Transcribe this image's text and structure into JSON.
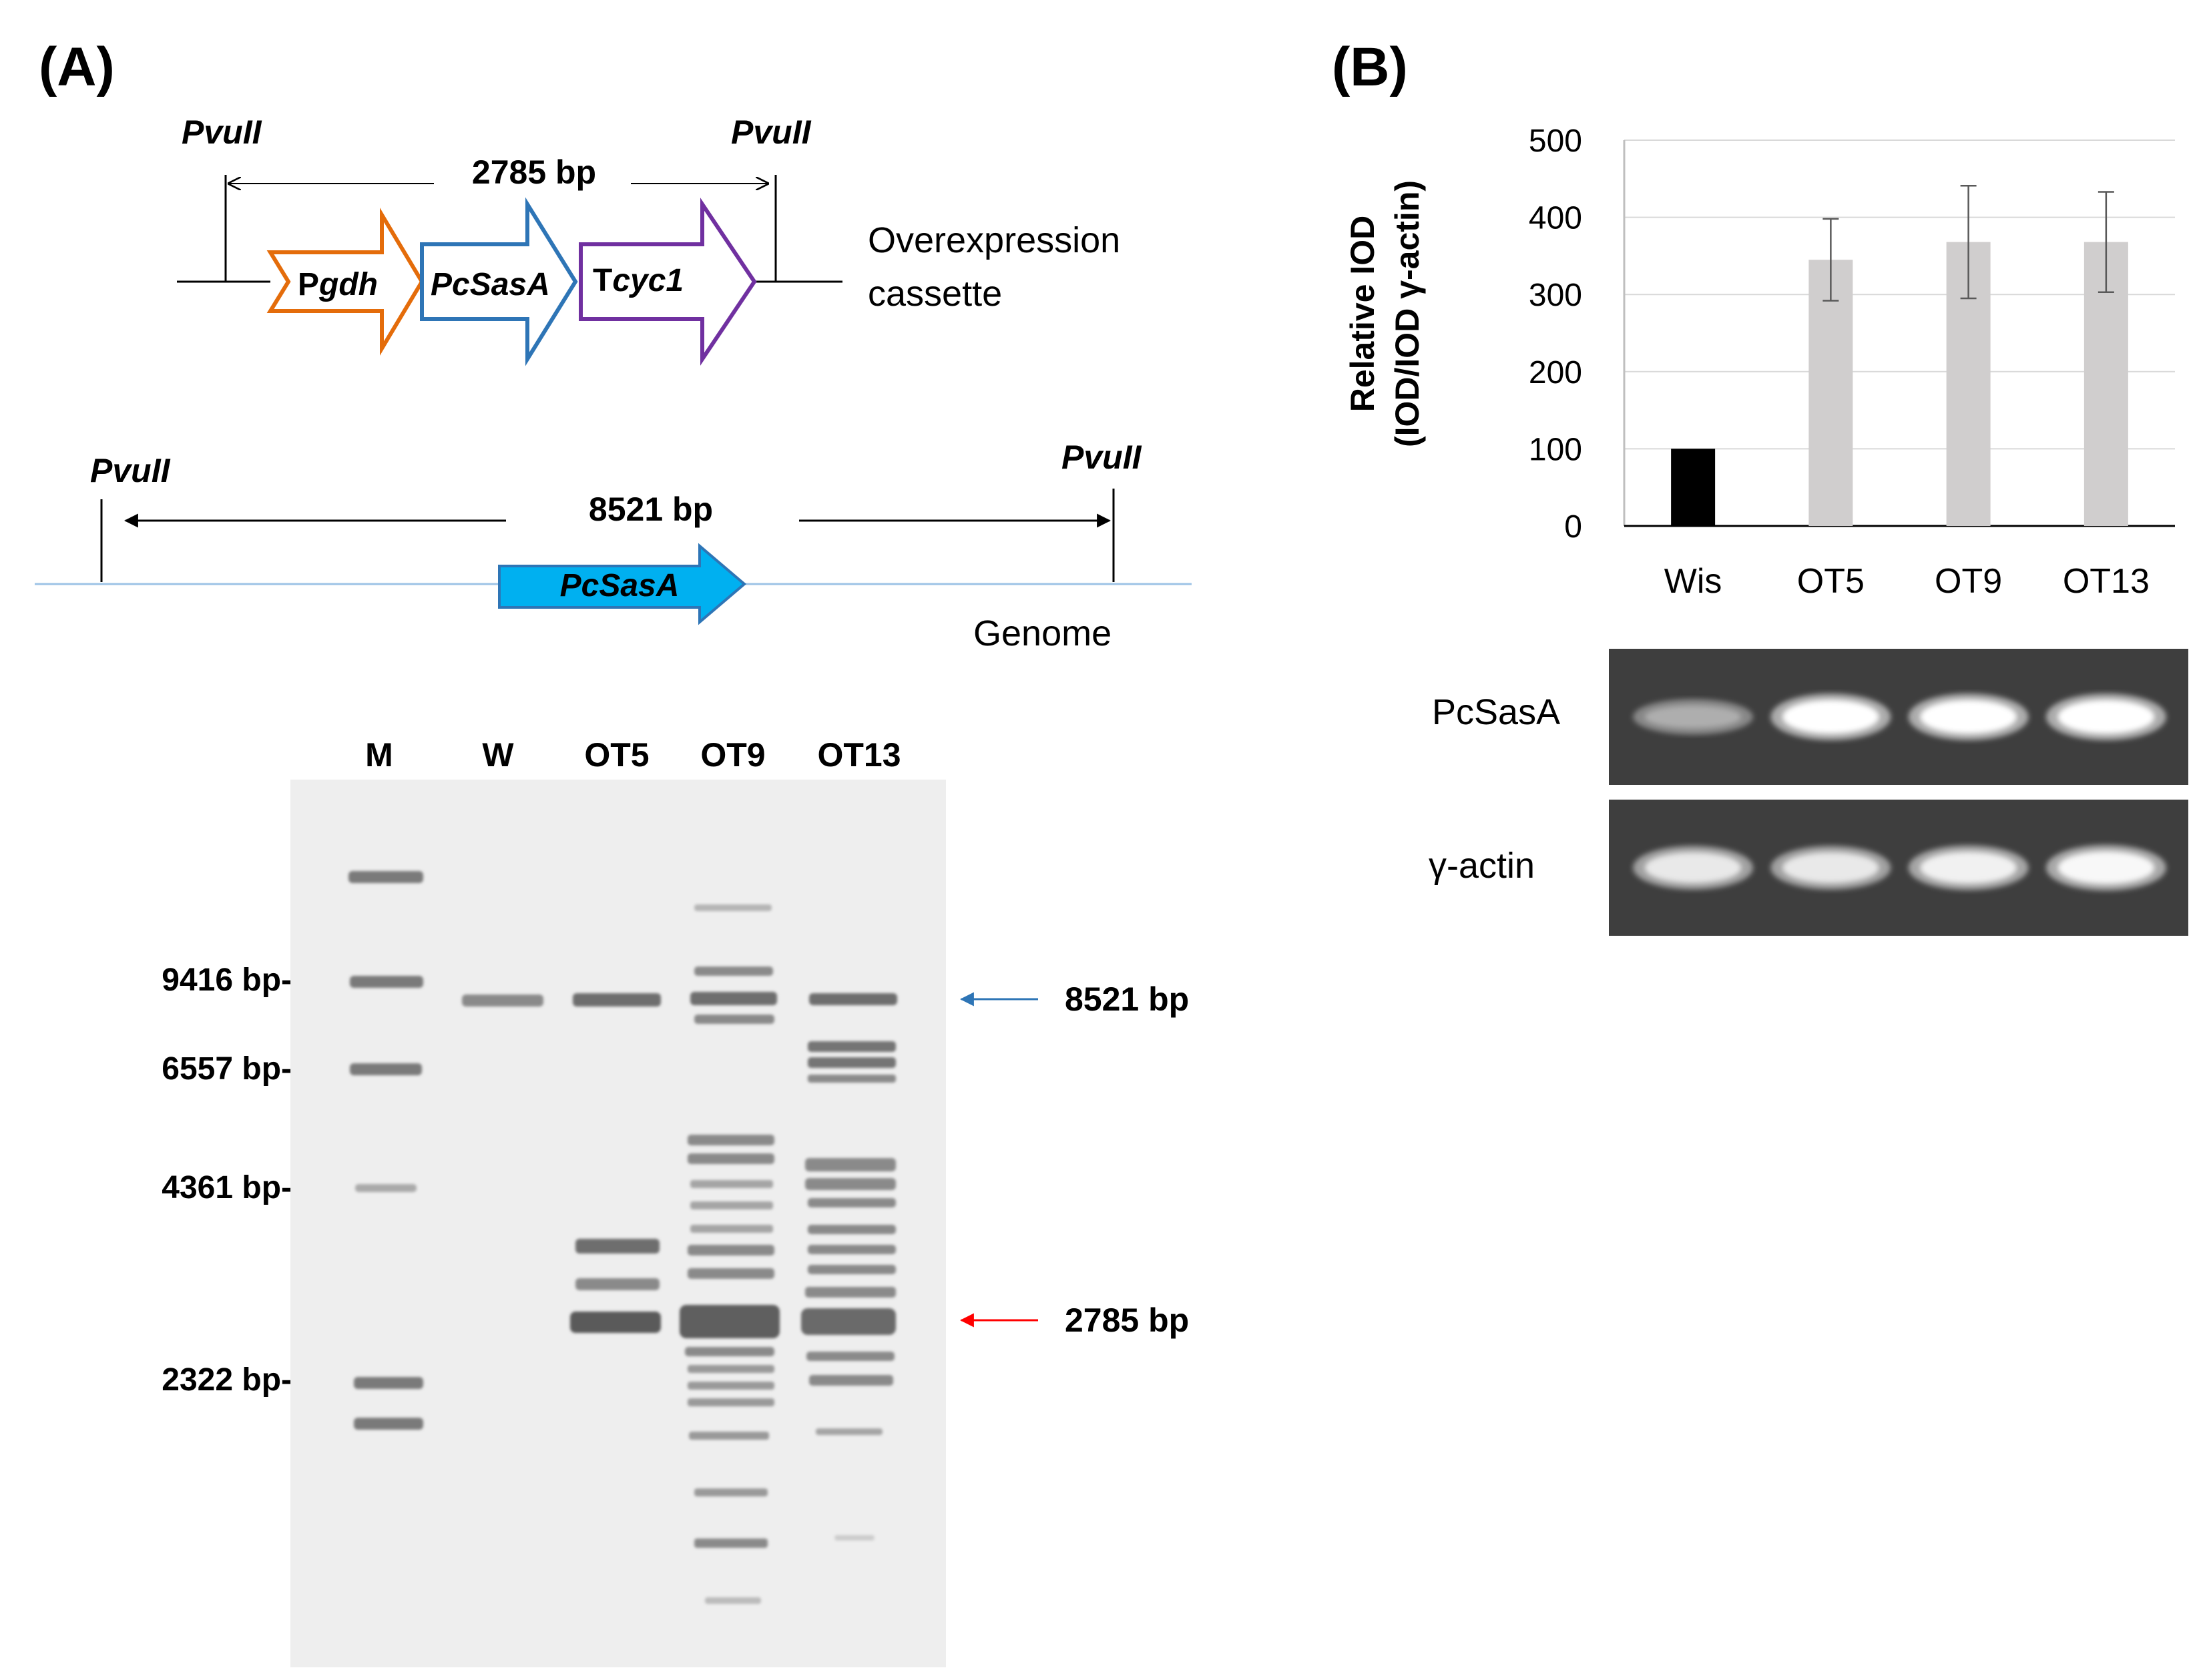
{
  "panelA": {
    "label": "(A)",
    "cassette": {
      "site_left": "PvuII",
      "site_right": "PvuII",
      "length": "2785 bp",
      "promoter": {
        "prefix": "P",
        "italic": "gdh",
        "color": "#e46c0a"
      },
      "gene": {
        "italic": "PcSasA",
        "color": "#2e75b6"
      },
      "terminator": {
        "prefix": "T",
        "italic": "cyc1",
        "color": "#7030a0"
      },
      "caption_line1": "Overexpression",
      "caption_line2": "cassette"
    },
    "genome": {
      "site_left": "PvuII",
      "site_right": "PvuII",
      "length": "8521 bp",
      "gene": {
        "italic": "PcSasA",
        "color": "#00b0f0"
      },
      "caption": "Genome"
    },
    "gel": {
      "lanes": [
        "M",
        "W",
        "OT5",
        "OT9",
        "OT13"
      ],
      "marker_labels": [
        "9416 bp-",
        "6557 bp-",
        "4361 bp-",
        "2322 bp-"
      ],
      "arrows": [
        {
          "label": "8521 bp",
          "color": "#2e75b6"
        },
        {
          "label": "2785 bp",
          "color": "#ff0000"
        }
      ]
    }
  },
  "panelB": {
    "label": "(B)",
    "chart_data": {
      "type": "bar",
      "categories": [
        "Wis",
        "OT5",
        "OT9",
        "OT13"
      ],
      "values": [
        100,
        345,
        368,
        368
      ],
      "errors": [
        0,
        53,
        73,
        65
      ],
      "bar_colors": [
        "#000000",
        "#d0cece",
        "#d0cece",
        "#d0cece"
      ],
      "ylabel_line1": "Relative IOD",
      "ylabel_line2": "(IOD/IOD γ-actin)",
      "ylim": [
        0,
        500
      ],
      "yticks": [
        "0",
        "100",
        "200",
        "300",
        "400",
        "500"
      ],
      "grid": true
    },
    "blots": [
      {
        "label": "PcSasA",
        "intensities": [
          0.45,
          1.0,
          1.0,
          1.0
        ]
      },
      {
        "label": "γ-actin",
        "intensities": [
          0.85,
          0.85,
          0.9,
          0.95
        ]
      }
    ]
  }
}
